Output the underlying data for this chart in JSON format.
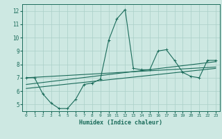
{
  "title": "",
  "xlabel": "Humidex (Indice chaleur)",
  "background_color": "#cde8e2",
  "grid_color": "#aacfc8",
  "line_color": "#1a6b5a",
  "xlim": [
    -0.5,
    23.5
  ],
  "ylim": [
    4.5,
    12.5
  ],
  "xticks": [
    0,
    1,
    2,
    3,
    4,
    5,
    6,
    7,
    8,
    9,
    10,
    11,
    12,
    13,
    14,
    15,
    16,
    17,
    18,
    19,
    20,
    21,
    22,
    23
  ],
  "yticks": [
    5,
    6,
    7,
    8,
    9,
    10,
    11,
    12
  ],
  "series1_x": [
    0,
    1,
    2,
    3,
    4,
    5,
    6,
    7,
    8,
    9,
    10,
    11,
    12,
    13,
    14,
    15,
    16,
    17,
    18,
    19,
    20,
    21,
    22,
    23
  ],
  "series1_y": [
    7.0,
    7.0,
    5.8,
    5.1,
    4.7,
    4.7,
    5.4,
    6.5,
    6.6,
    6.9,
    9.8,
    11.4,
    12.1,
    7.7,
    7.6,
    7.6,
    9.0,
    9.1,
    8.3,
    7.4,
    7.1,
    7.0,
    8.3,
    8.3
  ],
  "series2_x": [
    0,
    23
  ],
  "series2_y": [
    7.0,
    7.8
  ],
  "series3_x": [
    0,
    23
  ],
  "series3_y": [
    6.5,
    8.2
  ],
  "series4_x": [
    0,
    23
  ],
  "series4_y": [
    6.2,
    7.7
  ]
}
